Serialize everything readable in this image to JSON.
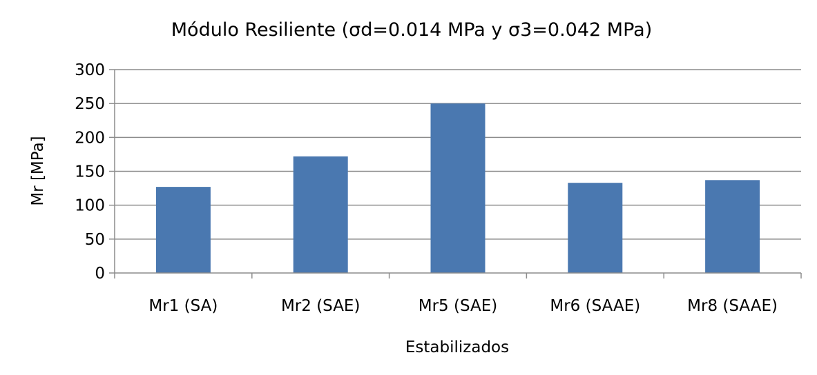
{
  "chart_data": {
    "type": "bar",
    "title": "Módulo Resiliente (σd=0.014 MPa y σ3=0.042 MPa)",
    "xlabel": "Estabilizados",
    "ylabel": "Mr [MPa]",
    "categories": [
      "Mr1 (SA)",
      "Mr2 (SAE)",
      "Mr5 (SAE)",
      "Mr6 (SAAE)",
      "Mr8 (SAAE)"
    ],
    "values": [
      127,
      172,
      250,
      133,
      137
    ],
    "ylim": [
      0,
      300
    ],
    "yticks": [
      0,
      50,
      100,
      150,
      200,
      250,
      300
    ],
    "grid": true,
    "legend": "none",
    "bar_color": "#4a78b0",
    "grid_color": "#8c8c8c"
  }
}
